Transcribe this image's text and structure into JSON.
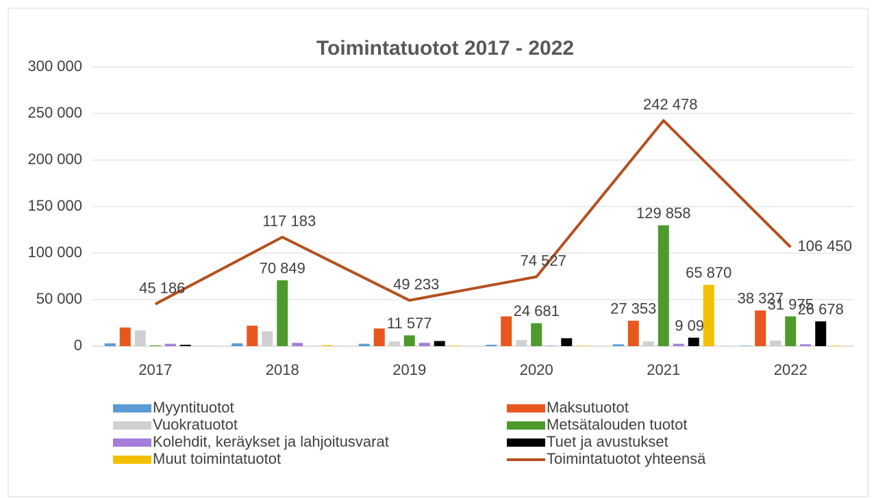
{
  "chart_data": {
    "type": "bar",
    "title": "Toimintatuotot 2017 - 2022",
    "categories": [
      "2017",
      "2018",
      "2019",
      "2020",
      "2021",
      "2022"
    ],
    "ylim": [
      0,
      300000
    ],
    "yticks": [
      {
        "value": 0,
        "label": "0"
      },
      {
        "value": 50000,
        "label": "50 000"
      },
      {
        "value": 100000,
        "label": "100 000"
      },
      {
        "value": 150000,
        "label": "150 000"
      },
      {
        "value": 200000,
        "label": "200 000"
      },
      {
        "value": 250000,
        "label": "250 000"
      },
      {
        "value": 300000,
        "label": "300 000"
      }
    ],
    "grid": true,
    "series": [
      {
        "name": "Myyntituotot",
        "color": "#5b9bd5",
        "values": [
          3000,
          3000,
          2500,
          1500,
          2000,
          500
        ]
      },
      {
        "name": "Maksutuotot",
        "color": "#e8571e",
        "values": [
          20000,
          22000,
          19000,
          32000,
          27353,
          38327
        ],
        "value_labels": [
          null,
          null,
          null,
          null,
          "27 353",
          "38 327"
        ]
      },
      {
        "name": "Vuokratuotot",
        "color": "#d0d0d0",
        "values": [
          17000,
          16000,
          5000,
          6500,
          5000,
          6000
        ]
      },
      {
        "name": "Metsätalouden tuotot",
        "color": "#4e9a2c",
        "values": [
          800,
          70849,
          11577,
          24681,
          129858,
          31975
        ],
        "value_labels": [
          null,
          "70 849",
          "11 577",
          "24 681",
          "129 858",
          "31 975"
        ]
      },
      {
        "name": "Kolehdit, keräykset ja lahjoitusvarat",
        "color": "#a47ddb",
        "values": [
          2500,
          3500,
          3500,
          500,
          2500,
          2000
        ]
      },
      {
        "name": "Tuet ja avustukset",
        "color": "#000000",
        "values": [
          1500,
          0,
          5500,
          8500,
          9091,
          26678
        ],
        "value_labels": [
          null,
          null,
          null,
          null,
          "9 091",
          "26 678"
        ]
      },
      {
        "name": "Muut toimintatuotot",
        "color": "#f2c000",
        "values": [
          0,
          1000,
          500,
          500,
          65870,
          500
        ],
        "value_labels": [
          null,
          null,
          null,
          null,
          "65 870",
          null
        ]
      },
      {
        "name": "Toimintatuotot yhteensä",
        "type": "line",
        "color": "#b5501e",
        "values": [
          45186,
          117183,
          49233,
          74527,
          242478,
          106450
        ],
        "value_labels": [
          "45 186",
          "117 183",
          "49 233",
          "74 527",
          "242 478",
          "106 450"
        ]
      }
    ]
  }
}
